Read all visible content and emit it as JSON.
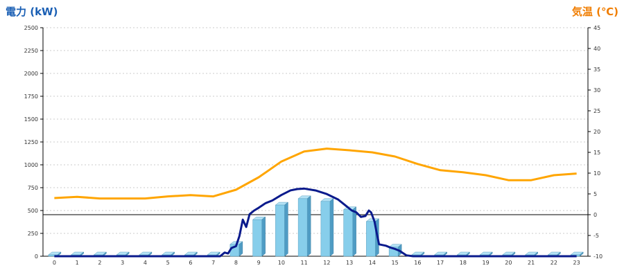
{
  "chart_data": {
    "type": "bar",
    "title_left": "電力 (kW)",
    "title_right": "気温 (℃)",
    "categories": [
      "0",
      "1",
      "2",
      "3",
      "4",
      "5",
      "6",
      "7",
      "8",
      "9",
      "10",
      "11",
      "12",
      "13",
      "14",
      "15",
      "16",
      "17",
      "18",
      "19",
      "20",
      "21",
      "22",
      "23"
    ],
    "y_left": {
      "min": 0,
      "max": 2500,
      "ticks": [
        0,
        250,
        500,
        750,
        1000,
        1250,
        1500,
        1750,
        2000,
        2250,
        2500
      ]
    },
    "y_right": {
      "min": -10,
      "max": 45,
      "ticks": [
        -10,
        -5,
        0,
        5,
        10,
        15,
        20,
        25,
        30,
        35,
        40,
        45
      ]
    },
    "grid": true,
    "bars": {
      "name": "",
      "color": "#87ceeb",
      "values": [
        0,
        0,
        0,
        0,
        0,
        0,
        0,
        0,
        130,
        400,
        560,
        630,
        600,
        510,
        380,
        100,
        0,
        0,
        0,
        0,
        0,
        0,
        0,
        0
      ]
    },
    "power_line": {
      "color": "#0a1a8c",
      "points": [
        [
          0,
          0
        ],
        [
          1,
          0
        ],
        [
          2,
          0
        ],
        [
          3,
          0
        ],
        [
          4,
          0
        ],
        [
          5,
          0
        ],
        [
          6,
          0
        ],
        [
          7,
          0
        ],
        [
          7.3,
          0
        ],
        [
          7.5,
          40
        ],
        [
          7.65,
          30
        ],
        [
          7.8,
          90
        ],
        [
          8.0,
          110
        ],
        [
          8.15,
          220
        ],
        [
          8.3,
          400
        ],
        [
          8.45,
          320
        ],
        [
          8.6,
          460
        ],
        [
          8.8,
          500
        ],
        [
          9.0,
          530
        ],
        [
          9.3,
          580
        ],
        [
          9.6,
          610
        ],
        [
          10.0,
          670
        ],
        [
          10.4,
          720
        ],
        [
          10.7,
          735
        ],
        [
          11.0,
          740
        ],
        [
          11.5,
          720
        ],
        [
          12.0,
          680
        ],
        [
          12.5,
          620
        ],
        [
          12.8,
          560
        ],
        [
          13.1,
          500
        ],
        [
          13.3,
          480
        ],
        [
          13.5,
          430
        ],
        [
          13.7,
          440
        ],
        [
          13.85,
          500
        ],
        [
          13.95,
          480
        ],
        [
          14.1,
          380
        ],
        [
          14.2,
          250
        ],
        [
          14.3,
          130
        ],
        [
          14.6,
          115
        ],
        [
          14.8,
          95
        ],
        [
          15.0,
          80
        ],
        [
          15.2,
          60
        ],
        [
          15.5,
          10
        ],
        [
          15.8,
          0
        ],
        [
          16,
          0
        ],
        [
          17,
          0
        ],
        [
          18,
          0
        ],
        [
          19,
          0
        ],
        [
          20,
          0
        ],
        [
          21,
          0
        ],
        [
          22,
          0
        ],
        [
          23,
          0
        ]
      ]
    },
    "temp_line": {
      "color": "#ffa500",
      "points": [
        [
          0,
          4
        ],
        [
          1,
          4.3
        ],
        [
          2,
          3.9
        ],
        [
          3,
          3.9
        ],
        [
          4,
          3.9
        ],
        [
          5,
          4.4
        ],
        [
          6,
          4.7
        ],
        [
          7,
          4.4
        ],
        [
          8,
          6
        ],
        [
          9,
          9
        ],
        [
          10,
          12.8
        ],
        [
          11,
          15.2
        ],
        [
          12,
          15.9
        ],
        [
          13,
          15.5
        ],
        [
          14,
          15
        ],
        [
          15,
          14
        ],
        [
          16,
          12.2
        ],
        [
          17,
          10.7
        ],
        [
          18,
          10.2
        ],
        [
          19,
          9.5
        ],
        [
          20,
          8.3
        ],
        [
          21,
          8.3
        ],
        [
          22,
          9.5
        ],
        [
          23,
          9.9
        ]
      ]
    }
  }
}
